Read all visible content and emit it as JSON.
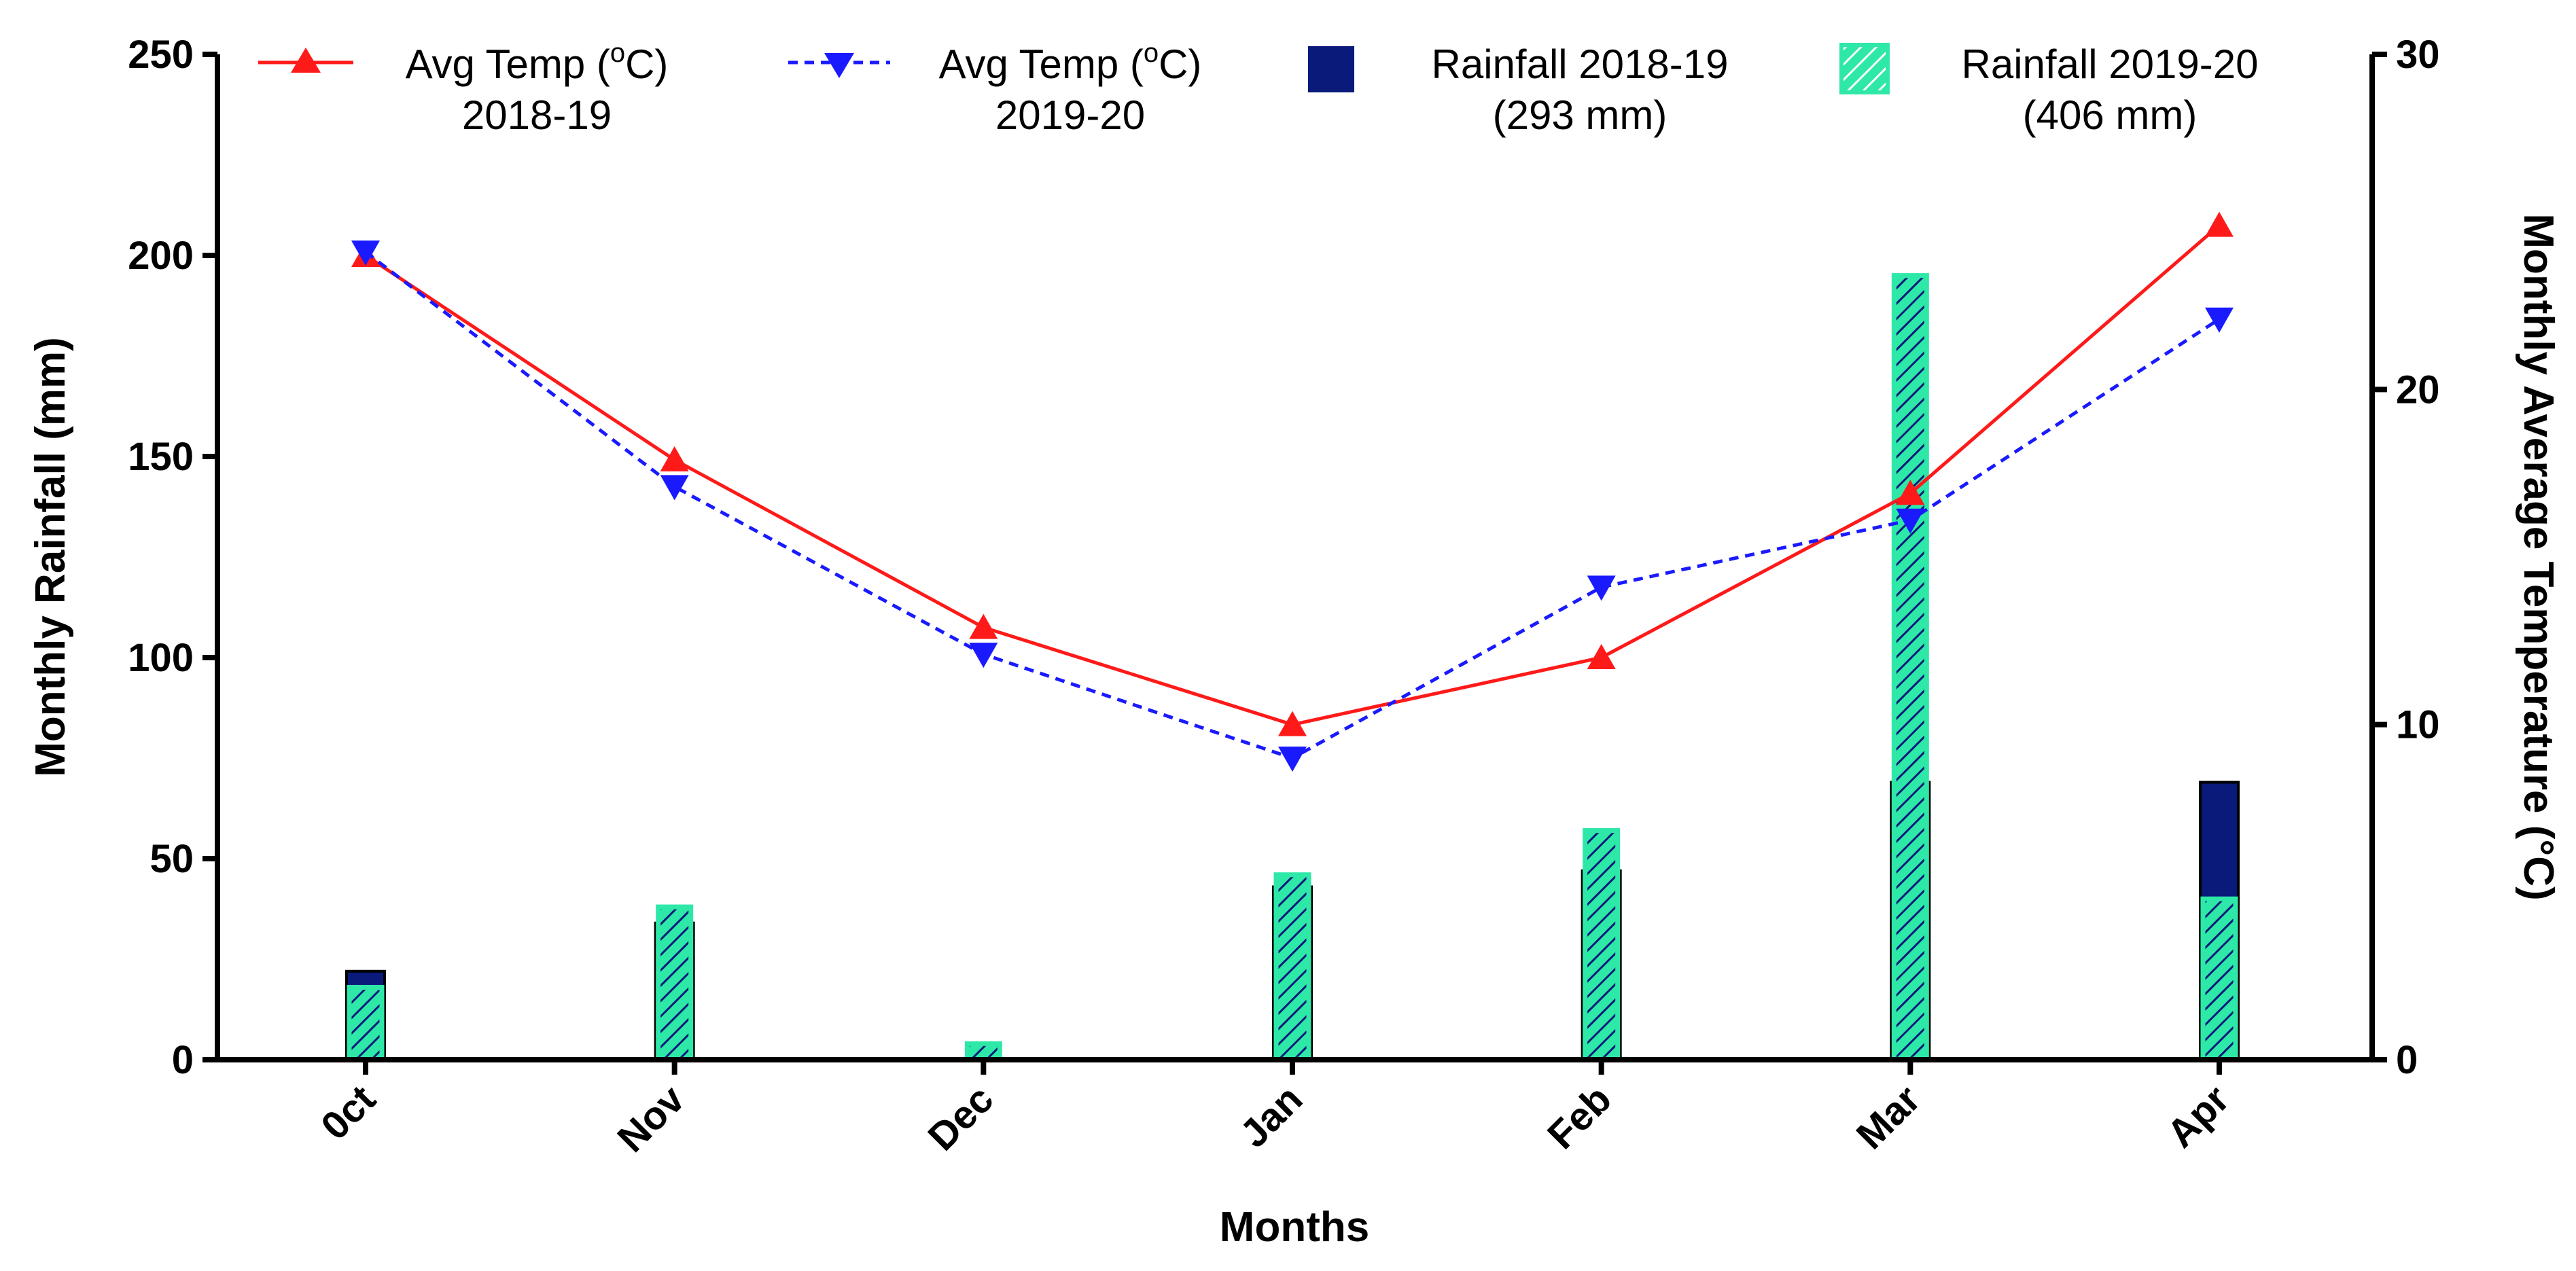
{
  "chart_data": {
    "type": "bar+line",
    "xlabel": "Months",
    "ylabel_left": "Monthly Rainfall (mm)",
    "ylabel_right": "Monthly Average Temperature (°C)",
    "categories": [
      "0ct",
      "Nov",
      "Dec",
      "Jan",
      "Feb",
      "Mar",
      "Apr"
    ],
    "ylim_left": [
      0,
      250
    ],
    "yticks_left": [
      0,
      50,
      100,
      150,
      200,
      250
    ],
    "ylim_right": [
      0,
      30
    ],
    "yticks_right": [
      0,
      10,
      20,
      30
    ],
    "bars": [
      {
        "name": "Rainfall 2018-19",
        "name_sub": "(293 mm)",
        "color": "#0a1a7a",
        "pattern": "solid",
        "values": [
          22,
          34,
          0,
          43,
          47,
          69,
          69
        ]
      },
      {
        "name": "Rainfall 2019-20",
        "name_sub": "(406 mm)",
        "color": "#2ee8a8",
        "pattern": "hatched",
        "values": [
          18,
          38,
          4,
          46,
          57,
          195,
          40
        ]
      }
    ],
    "lines": [
      {
        "name": "Avg Temp (°C)",
        "name_sub": "2018-19",
        "color": "#ff1a1a",
        "style": "solid",
        "marker": "triangle-up",
        "values": [
          24.0,
          17.9,
          12.9,
          10.0,
          12.0,
          16.9,
          24.9
        ]
      },
      {
        "name": "Avg Temp (°C)",
        "name_sub": "2019-20",
        "color": "#1a1aff",
        "style": "dashed",
        "marker": "triangle-down",
        "values": [
          24.1,
          17.1,
          12.1,
          9.0,
          14.1,
          16.1,
          22.1
        ]
      }
    ]
  }
}
